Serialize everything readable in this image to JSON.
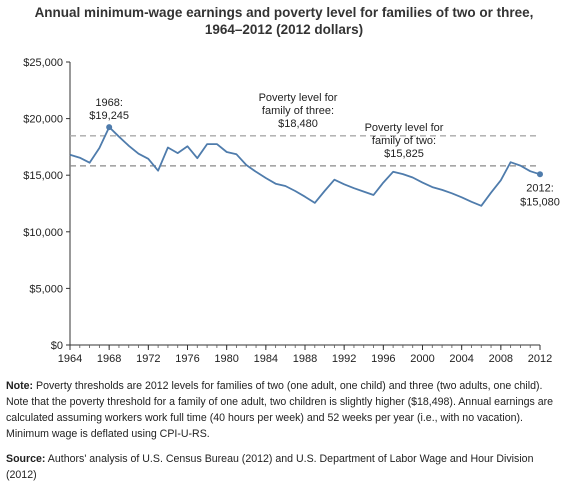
{
  "chart_data": {
    "type": "line",
    "title_line1": "Annual minimum-wage earnings and poverty level for families of two or three,",
    "title_line2": "1964–2012 (2012 dollars)",
    "x": [
      1964,
      1965,
      1966,
      1967,
      1968,
      1969,
      1970,
      1971,
      1972,
      1973,
      1974,
      1975,
      1976,
      1977,
      1978,
      1979,
      1980,
      1981,
      1982,
      1983,
      1984,
      1985,
      1986,
      1987,
      1988,
      1989,
      1990,
      1991,
      1992,
      1993,
      1994,
      1995,
      1996,
      1997,
      1998,
      1999,
      2000,
      2001,
      2002,
      2003,
      2004,
      2005,
      2006,
      2007,
      2008,
      2009,
      2010,
      2011,
      2012
    ],
    "series": [
      {
        "values": [
          16800,
          16550,
          16100,
          17400,
          19245,
          18400,
          17600,
          16900,
          16450,
          15400,
          17450,
          16950,
          17550,
          16500,
          17750,
          17750,
          17050,
          16850,
          15900,
          15300,
          14750,
          14250,
          14050,
          13600,
          13100,
          12550,
          13600,
          14600,
          14200,
          13850,
          13550,
          13250,
          14350,
          15300,
          15100,
          14800,
          14350,
          13950,
          13700,
          13400,
          13050,
          12650,
          12300,
          13450,
          14550,
          16150,
          15850,
          15350,
          15080
        ],
        "color": "#4f7cac"
      }
    ],
    "reference_lines": [
      {
        "value": 18480,
        "label_lines": [
          "Poverty level for",
          "family of three:",
          "$18,480"
        ],
        "color": "#aaaaaa"
      },
      {
        "value": 15825,
        "label_lines": [
          "Poverty level for",
          "family of two:",
          "$15,825"
        ],
        "color": "#888888"
      }
    ],
    "point_labels": [
      {
        "x": 1968,
        "value": 19245,
        "lines": [
          "1968:",
          "$19,245"
        ]
      },
      {
        "x": 2012,
        "value": 15080,
        "lines": [
          "2012:",
          "$15,080"
        ]
      }
    ],
    "y_ticks": [
      "$0",
      "$5,000",
      "$10,000",
      "$15,000",
      "$20,000",
      "$25,000"
    ],
    "y_tick_values": [
      0,
      5000,
      10000,
      15000,
      20000,
      25000
    ],
    "x_ticks": [
      "1964",
      "1968",
      "1972",
      "1976",
      "1980",
      "1984",
      "1988",
      "1992",
      "1996",
      "2000",
      "2004",
      "2008",
      "2012"
    ],
    "x_tick_values": [
      1964,
      1968,
      1972,
      1976,
      1980,
      1984,
      1988,
      1992,
      1996,
      2000,
      2004,
      2008,
      2012
    ],
    "xlim": [
      1964,
      2012
    ],
    "ylim": [
      0,
      25000
    ],
    "grid": false
  },
  "notes": {
    "note_label": "Note:",
    "note_text": " Poverty thresholds are 2012 levels for families of two (one adult, one child) and three (two adults, one child). Note that the poverty threshold for a family of one adult, two children is slightly higher ($18,498). Annual earnings are calculated assuming workers work full time (40 hours per week) and 52 weeks per year (i.e., with no vacation). Minimum wage is deflated using CPI-U-RS.",
    "source_label": "Source:",
    "source_text": " Authors' analysis of U.S. Census Bureau (2012) and U.S. Department of Labor Wage and Hour Division (2012)"
  }
}
